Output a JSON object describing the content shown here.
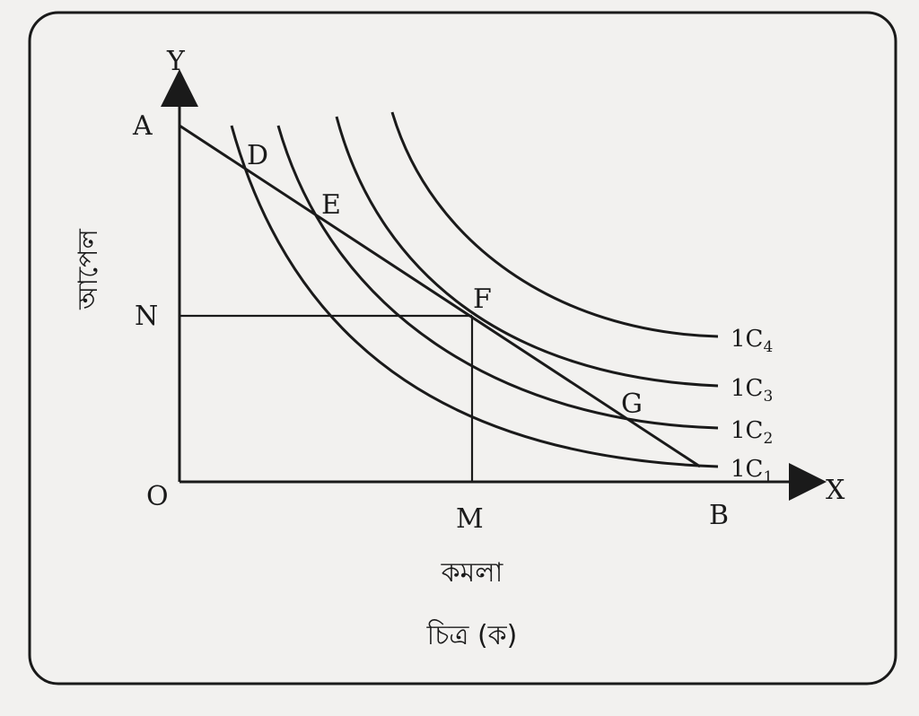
{
  "axes": {
    "y_axis_label": "Y",
    "x_axis_label": "X",
    "origin_label": "O",
    "y_axis_title": "আপেল",
    "x_axis_title": "কমলা"
  },
  "points": {
    "A": "A",
    "B": "B",
    "D": "D",
    "E": "E",
    "F": "F",
    "G": "G",
    "N": "N",
    "M": "M"
  },
  "curves": [
    {
      "id": "ic1",
      "prefix": "1C",
      "sub": "1"
    },
    {
      "id": "ic2",
      "prefix": "1C",
      "sub": "2"
    },
    {
      "id": "ic3",
      "prefix": "1C",
      "sub": "3"
    },
    {
      "id": "ic4",
      "prefix": "1C",
      "sub": "4"
    }
  ],
  "caption": "চিত্র (ক)"
}
